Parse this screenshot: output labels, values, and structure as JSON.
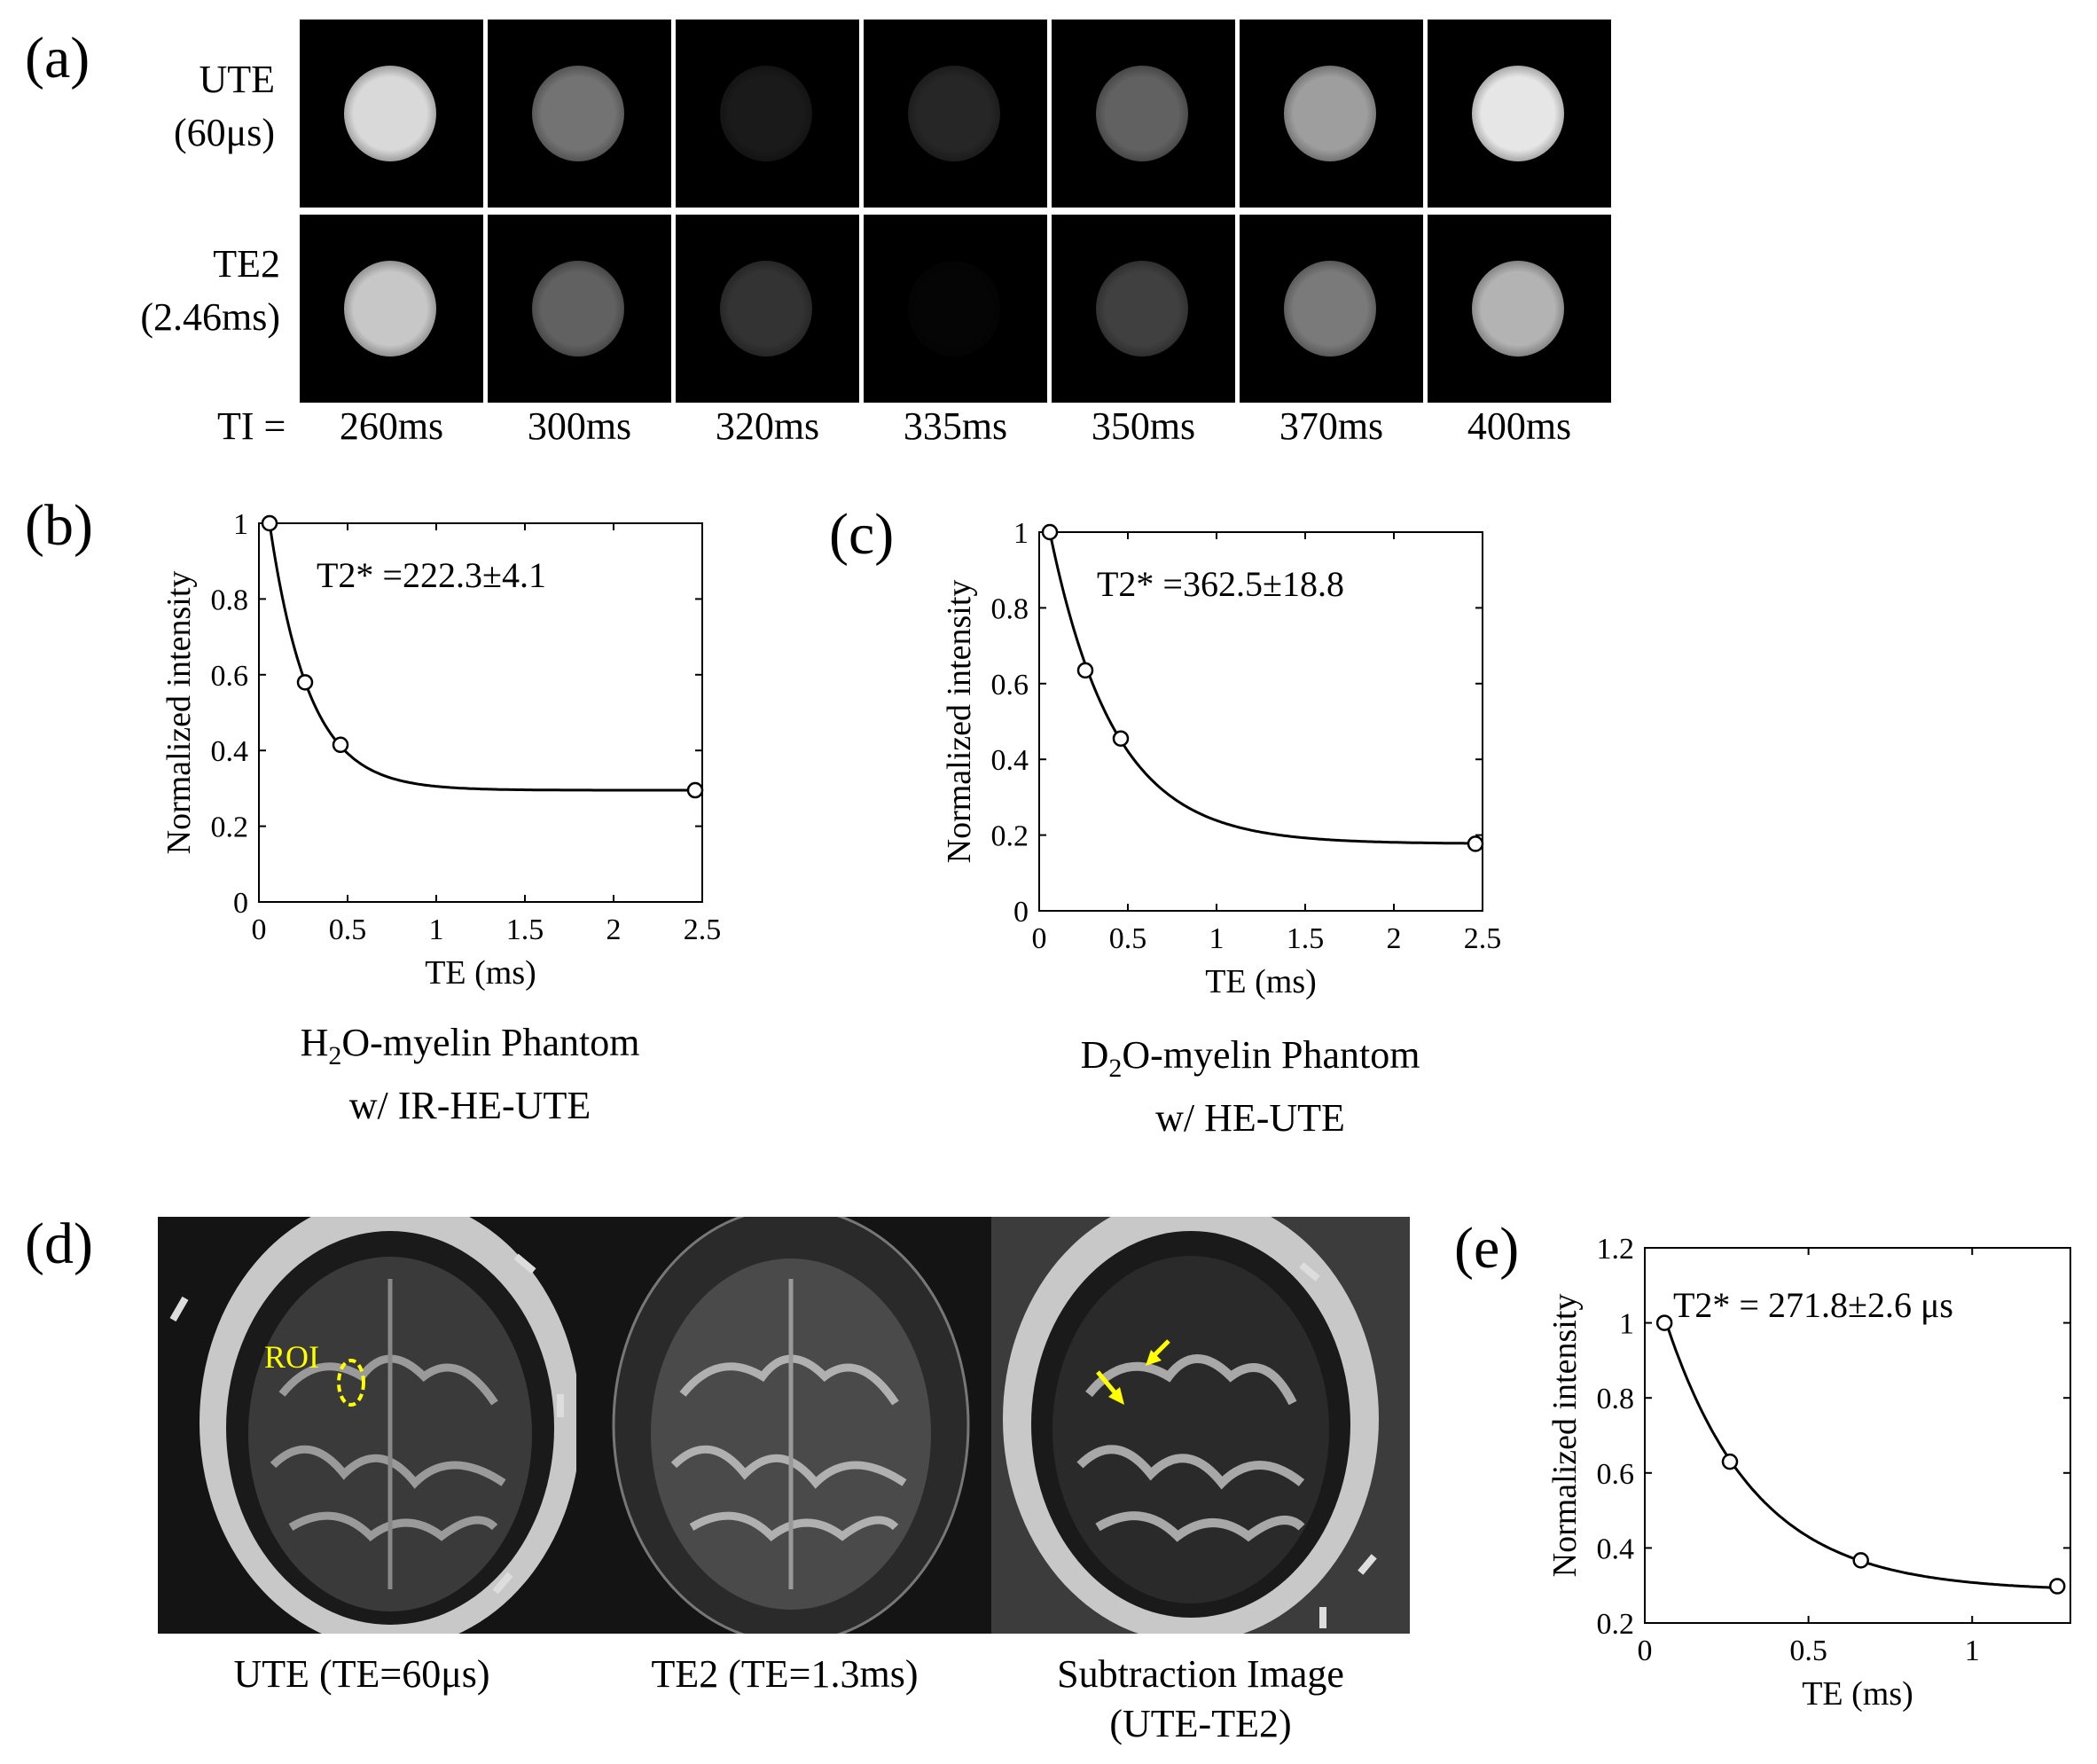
{
  "figure": {
    "panel_a": {
      "label": "(a)",
      "rows": [
        {
          "line1": "UTE",
          "line2": "(60μs)",
          "intensities": [
            0.85,
            0.45,
            0.1,
            0.15,
            0.38,
            0.62,
            0.9
          ]
        },
        {
          "line1": "TE2",
          "line2": "(2.46ms)",
          "intensities": [
            0.78,
            0.38,
            0.2,
            0.02,
            0.25,
            0.48,
            0.7
          ]
        }
      ],
      "ti_prefix": "TI =",
      "ti_values": [
        "260ms",
        "300ms",
        "320ms",
        "335ms",
        "350ms",
        "370ms",
        "400ms"
      ]
    },
    "panel_b_label": "(b)",
    "panel_c_label": "(c)",
    "panel_d": {
      "label": "(d)",
      "roi_label": "ROI",
      "captions": [
        "UTE (TE=60μs)",
        "TE2 (TE=1.3ms)",
        "Subtraction Image",
        "(UTE-TE2)"
      ]
    },
    "panel_e_label": "(e)",
    "caption_b": {
      "prefix": "H",
      "sub": "2",
      "suffix": "O-myelin Phantom",
      "line2": "w/ IR-HE-UTE"
    },
    "caption_c": {
      "prefix": "D",
      "sub": "2",
      "suffix": "O-myelin Phantom",
      "line2": "w/ HE-UTE"
    }
  },
  "chart_data": [
    {
      "type": "scatter",
      "panel": "b",
      "annotation": "T2* =222.3±4.1",
      "xlabel": "TE (ms)",
      "ylabel": "Normalized intensity",
      "xlim": [
        0,
        2.5
      ],
      "ylim": [
        0,
        1
      ],
      "xticks": [
        "0",
        "0.5",
        "1",
        "1.5",
        "2",
        "2.5"
      ],
      "yticks": [
        "0",
        "0.2",
        "0.4",
        "0.6",
        "0.8",
        "1"
      ],
      "points": {
        "x": [
          0.06,
          0.26,
          0.46,
          2.46
        ],
        "y": [
          1.0,
          0.58,
          0.415,
          0.295
        ]
      },
      "fit": {
        "model": "exponential",
        "a": 0.705,
        "t2": 0.2223,
        "c": 0.295
      },
      "grid": false
    },
    {
      "type": "scatter",
      "panel": "c",
      "annotation": "T2* =362.5±18.8",
      "xlabel": "TE (ms)",
      "ylabel": "Normalized intensity",
      "xlim": [
        0,
        2.5
      ],
      "ylim": [
        0,
        1
      ],
      "xticks": [
        "0",
        "0.5",
        "1",
        "1.5",
        "2",
        "2.5"
      ],
      "yticks": [
        "0",
        "0.2",
        "0.4",
        "0.6",
        "0.8",
        "1"
      ],
      "points": {
        "x": [
          0.06,
          0.26,
          0.46,
          2.46
        ],
        "y": [
          1.0,
          0.635,
          0.455,
          0.177
        ]
      },
      "fit": {
        "model": "exponential",
        "a": 0.823,
        "t2": 0.3625,
        "c": 0.177
      },
      "grid": false
    },
    {
      "type": "scatter",
      "panel": "e",
      "annotation": "T2* = 271.8±2.6 μs",
      "xlabel": "TE (ms)",
      "ylabel": "Normalized intensity",
      "xlim": [
        0,
        1.3
      ],
      "ylim": [
        0.2,
        1.2
      ],
      "xticks": [
        "0",
        "0.5",
        "1"
      ],
      "xtick_values": [
        0,
        0.5,
        1
      ],
      "yticks": [
        "0.2",
        "0.4",
        "0.6",
        "0.8",
        "1",
        "1.2"
      ],
      "points": {
        "x": [
          0.06,
          0.26,
          0.66,
          1.26
        ],
        "y": [
          1.0,
          0.63,
          0.367,
          0.298
        ]
      },
      "fit": {
        "model": "exponential",
        "a": 0.73,
        "t2": 0.2718,
        "c": 0.285
      },
      "grid": false
    }
  ]
}
